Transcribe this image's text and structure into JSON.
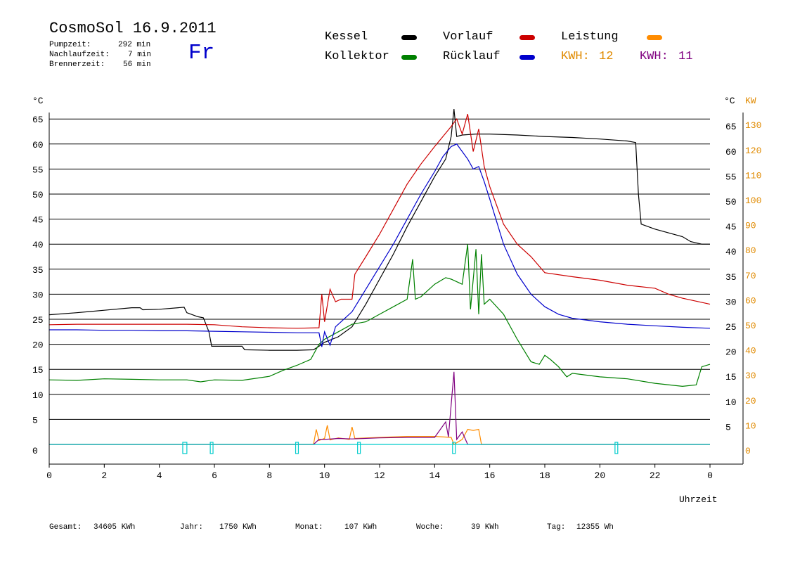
{
  "header": {
    "title": "CosmoSol 16.9.2011",
    "day": "Fr",
    "pump_label": "Pumpzeit:",
    "pump_value": "292 min",
    "after_label": "Nachlaufzeit:",
    "after_value": "7 min",
    "burner_label": "Brennerzeit:",
    "burner_value": "56 min"
  },
  "legend": {
    "kessel": "Kessel",
    "kollektor": "Kollektor",
    "vorlauf": "Vorlauf",
    "ruecklauf": "Rücklauf",
    "leistung": "Leistung",
    "kwh1_label": "KWH:",
    "kwh1_value": "12",
    "kwh2_label": "KWH:",
    "kwh2_value": "11"
  },
  "footer": {
    "gesamt_label": "Gesamt:",
    "gesamt_value": "34605 KWh",
    "jahr_label": "Jahr:",
    "jahr_value": "1750 KWh",
    "monat_label": "Monat:",
    "monat_value": "107 KWh",
    "woche_label": "Woche:",
    "woche_value": "39 KWh",
    "tag_label": "Tag:",
    "tag_value": "12355 Wh"
  },
  "colors": {
    "kessel": "#000000",
    "kollektor": "#008000",
    "vorlauf": "#cc0000",
    "ruecklauf": "#0000cc",
    "leistung": "#ff8c00",
    "leistung2": "#800080",
    "pump": "#00cccc",
    "orange_text": "#e08a00",
    "purple_text": "#800080"
  },
  "chart_data": {
    "type": "line",
    "xlabel": "Uhrzeit",
    "ylabel_left": "°C",
    "ylabel_right_temp": "°C",
    "ylabel_right_power": "KW",
    "xlim": [
      0,
      24
    ],
    "ylim": [
      0,
      65
    ],
    "x_ticks": [
      "0",
      "2",
      "4",
      "6",
      "8",
      "10",
      "12",
      "14",
      "16",
      "18",
      "20",
      "22",
      "0"
    ],
    "y_ticks_left": [
      "0",
      "5",
      "10",
      "15",
      "20",
      "25",
      "30",
      "35",
      "40",
      "45",
      "50",
      "55",
      "60",
      "65"
    ],
    "y_ticks_right_temp": [
      "5",
      "10",
      "15",
      "20",
      "25",
      "30",
      "35",
      "40",
      "45",
      "50",
      "55",
      "60",
      "65"
    ],
    "y_ticks_right_power": [
      "0",
      "10",
      "20",
      "30",
      "40",
      "50",
      "60",
      "70",
      "80",
      "90",
      "100",
      "110",
      "120",
      "130"
    ],
    "grid": true,
    "series": [
      {
        "name": "Kessel",
        "color": "#000000",
        "points": [
          [
            0,
            25.9
          ],
          [
            1,
            26.3
          ],
          [
            2,
            26.8
          ],
          [
            3,
            27.3
          ],
          [
            3.3,
            27.3
          ],
          [
            3.4,
            26.9
          ],
          [
            4,
            27.0
          ],
          [
            4.9,
            27.4
          ],
          [
            5,
            26.3
          ],
          [
            5.4,
            25.5
          ],
          [
            5.6,
            25.3
          ],
          [
            5.8,
            22.5
          ],
          [
            5.9,
            19.6
          ],
          [
            7,
            19.6
          ],
          [
            7.1,
            18.9
          ],
          [
            8,
            18.8
          ],
          [
            9,
            18.8
          ],
          [
            9.6,
            18.9
          ],
          [
            9.8,
            19.6
          ],
          [
            10,
            20.4
          ],
          [
            10.5,
            21.5
          ],
          [
            11,
            23.5
          ],
          [
            11.5,
            28.0
          ],
          [
            12,
            33.0
          ],
          [
            12.5,
            38.0
          ],
          [
            13,
            43.5
          ],
          [
            13.5,
            48.5
          ],
          [
            14,
            53.5
          ],
          [
            14.4,
            57.0
          ],
          [
            14.6,
            61.5
          ],
          [
            14.7,
            67.0
          ],
          [
            14.8,
            61.5
          ],
          [
            15,
            61.8
          ],
          [
            15.5,
            62.0
          ],
          [
            16,
            62.0
          ],
          [
            17,
            61.8
          ],
          [
            18,
            61.5
          ],
          [
            19,
            61.3
          ],
          [
            20,
            61.0
          ],
          [
            21,
            60.6
          ],
          [
            21.3,
            60.3
          ],
          [
            21.4,
            50.0
          ],
          [
            21.5,
            44.0
          ],
          [
            22,
            43.0
          ],
          [
            23,
            41.5
          ],
          [
            23.3,
            40.5
          ],
          [
            23.7,
            40.0
          ],
          [
            24,
            40.0
          ]
        ]
      },
      {
        "name": "Kollektor",
        "color": "#008000",
        "points": [
          [
            0,
            12.9
          ],
          [
            1,
            12.8
          ],
          [
            2,
            13.1
          ],
          [
            3,
            13.0
          ],
          [
            4,
            12.9
          ],
          [
            5,
            12.9
          ],
          [
            5.5,
            12.5
          ],
          [
            6,
            12.9
          ],
          [
            7,
            12.8
          ],
          [
            8,
            13.6
          ],
          [
            8.5,
            14.8
          ],
          [
            9,
            15.8
          ],
          [
            9.5,
            17.0
          ],
          [
            9.8,
            20.0
          ],
          [
            10,
            21.0
          ],
          [
            10.5,
            22.5
          ],
          [
            11,
            24.0
          ],
          [
            11.5,
            24.5
          ],
          [
            12,
            26.0
          ],
          [
            12.5,
            27.5
          ],
          [
            13,
            29.0
          ],
          [
            13.2,
            37.0
          ],
          [
            13.3,
            29.0
          ],
          [
            13.5,
            29.5
          ],
          [
            14,
            32.0
          ],
          [
            14.4,
            33.3
          ],
          [
            14.6,
            33.0
          ],
          [
            15,
            32.0
          ],
          [
            15.2,
            40.0
          ],
          [
            15.3,
            27.0
          ],
          [
            15.5,
            39.0
          ],
          [
            15.6,
            26.0
          ],
          [
            15.7,
            38.0
          ],
          [
            15.8,
            28.0
          ],
          [
            16,
            29.0
          ],
          [
            16.5,
            26.0
          ],
          [
            17,
            21.0
          ],
          [
            17.5,
            16.5
          ],
          [
            17.8,
            16.0
          ],
          [
            18,
            17.8
          ],
          [
            18.2,
            17.0
          ],
          [
            18.5,
            15.5
          ],
          [
            18.8,
            13.5
          ],
          [
            19,
            14.2
          ],
          [
            20,
            13.5
          ],
          [
            21,
            13.1
          ],
          [
            22,
            12.2
          ],
          [
            23,
            11.6
          ],
          [
            23.5,
            11.9
          ],
          [
            23.7,
            15.5
          ],
          [
            24,
            16.0
          ]
        ]
      },
      {
        "name": "Vorlauf",
        "color": "#cc0000",
        "points": [
          [
            0,
            23.9
          ],
          [
            1,
            24.0
          ],
          [
            2,
            24.0
          ],
          [
            3,
            24.0
          ],
          [
            4,
            24.0
          ],
          [
            5,
            24.0
          ],
          [
            6,
            23.9
          ],
          [
            7,
            23.5
          ],
          [
            8,
            23.3
          ],
          [
            9,
            23.2
          ],
          [
            9.8,
            23.3
          ],
          [
            9.9,
            30.0
          ],
          [
            10,
            24.5
          ],
          [
            10.2,
            31.0
          ],
          [
            10.4,
            28.5
          ],
          [
            10.6,
            29.0
          ],
          [
            11,
            29.0
          ],
          [
            11.1,
            34.0
          ],
          [
            11.5,
            37.5
          ],
          [
            12,
            42.0
          ],
          [
            12.5,
            47.0
          ],
          [
            13,
            52.0
          ],
          [
            13.5,
            56.0
          ],
          [
            14,
            59.5
          ],
          [
            14.3,
            61.5
          ],
          [
            14.6,
            63.5
          ],
          [
            14.8,
            65.0
          ],
          [
            15,
            62.0
          ],
          [
            15.2,
            66.0
          ],
          [
            15.4,
            58.5
          ],
          [
            15.6,
            63.0
          ],
          [
            15.8,
            55.5
          ],
          [
            16,
            51.5
          ],
          [
            16.5,
            44.0
          ],
          [
            17,
            40.0
          ],
          [
            17.5,
            37.5
          ],
          [
            18,
            34.3
          ],
          [
            19,
            33.5
          ],
          [
            20,
            32.8
          ],
          [
            21,
            31.8
          ],
          [
            22,
            31.2
          ],
          [
            22.5,
            30.0
          ],
          [
            23,
            29.2
          ],
          [
            24,
            28.0
          ]
        ]
      },
      {
        "name": "Rücklauf",
        "color": "#0000cc",
        "points": [
          [
            0,
            22.9
          ],
          [
            1,
            22.9
          ],
          [
            2,
            22.8
          ],
          [
            3,
            22.8
          ],
          [
            4,
            22.7
          ],
          [
            5,
            22.7
          ],
          [
            6,
            22.6
          ],
          [
            7,
            22.5
          ],
          [
            8,
            22.4
          ],
          [
            9,
            22.3
          ],
          [
            9.8,
            22.3
          ],
          [
            9.9,
            19.5
          ],
          [
            10,
            22.5
          ],
          [
            10.2,
            19.8
          ],
          [
            10.4,
            23.5
          ],
          [
            10.6,
            24.5
          ],
          [
            11,
            26.5
          ],
          [
            11.5,
            31.0
          ],
          [
            12,
            35.5
          ],
          [
            12.5,
            40.0
          ],
          [
            13,
            45.0
          ],
          [
            13.5,
            50.0
          ],
          [
            14,
            54.5
          ],
          [
            14.3,
            57.5
          ],
          [
            14.6,
            59.5
          ],
          [
            14.8,
            60.0
          ],
          [
            15,
            58.5
          ],
          [
            15.2,
            57.0
          ],
          [
            15.4,
            55.0
          ],
          [
            15.6,
            55.5
          ],
          [
            15.8,
            52.5
          ],
          [
            16,
            49.0
          ],
          [
            16.5,
            40.0
          ],
          [
            17,
            34.0
          ],
          [
            17.5,
            30.0
          ],
          [
            18,
            27.5
          ],
          [
            18.5,
            26.0
          ],
          [
            19,
            25.2
          ],
          [
            20,
            24.5
          ],
          [
            21,
            24.0
          ],
          [
            22,
            23.7
          ],
          [
            23,
            23.4
          ],
          [
            24,
            23.2
          ]
        ]
      },
      {
        "name": "Leistung",
        "color": "#ff8c00",
        "points": [
          [
            0,
            0
          ],
          [
            9.6,
            0
          ],
          [
            9.7,
            3.0
          ],
          [
            9.8,
            0.8
          ],
          [
            10,
            1.2
          ],
          [
            10.1,
            3.8
          ],
          [
            10.2,
            0.9
          ],
          [
            10.5,
            1.3
          ],
          [
            10.9,
            1.0
          ],
          [
            11.0,
            3.5
          ],
          [
            11.1,
            1.2
          ],
          [
            12,
            1.4
          ],
          [
            13,
            1.6
          ],
          [
            14,
            1.6
          ],
          [
            14.6,
            1.4
          ],
          [
            14.7,
            0
          ],
          [
            15.0,
            1.0
          ],
          [
            15.2,
            3.0
          ],
          [
            15.4,
            2.8
          ],
          [
            15.6,
            3.0
          ],
          [
            15.7,
            0
          ],
          [
            24,
            0
          ]
        ]
      },
      {
        "name": "",
        "color": "#800080",
        "points": [
          [
            0,
            0
          ],
          [
            9.6,
            0
          ],
          [
            9.8,
            1.0
          ],
          [
            10,
            1.0
          ],
          [
            10.5,
            1.2
          ],
          [
            11,
            1.1
          ],
          [
            12,
            1.3
          ],
          [
            13,
            1.4
          ],
          [
            14,
            1.4
          ],
          [
            14.4,
            4.5
          ],
          [
            14.5,
            1.5
          ],
          [
            14.7,
            14.5
          ],
          [
            14.8,
            1.0
          ],
          [
            15,
            2.5
          ],
          [
            15.2,
            0
          ],
          [
            24,
            0
          ]
        ]
      }
    ],
    "pump_segments": [
      [
        4.85,
        5.0
      ],
      [
        5.85,
        5.95
      ],
      [
        8.95,
        9.05
      ],
      [
        11.2,
        11.3
      ],
      [
        14.65,
        14.75
      ],
      [
        20.55,
        20.65
      ]
    ]
  }
}
